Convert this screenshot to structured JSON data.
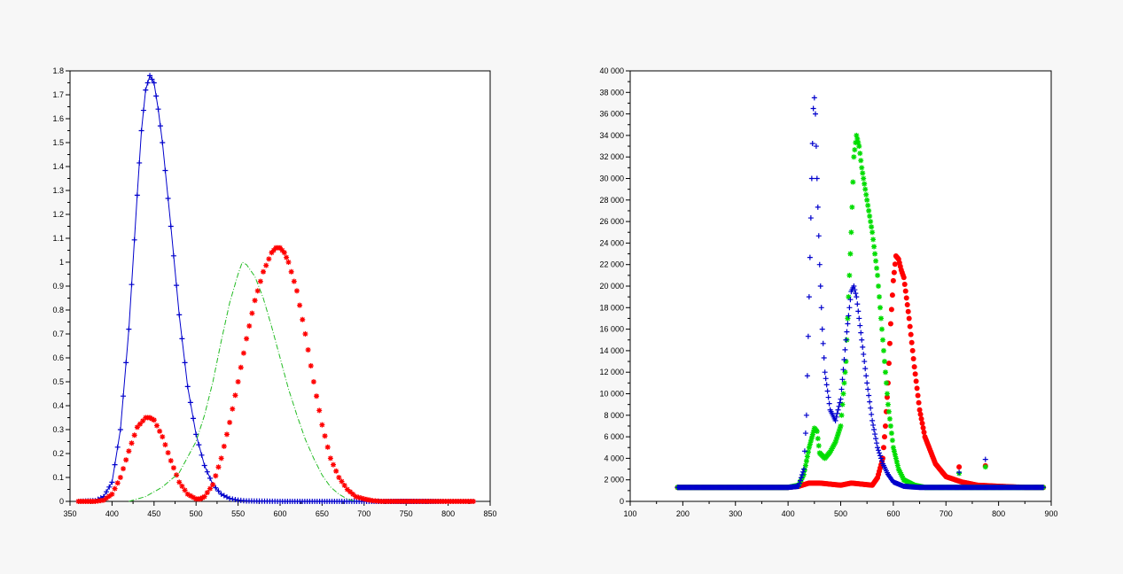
{
  "colors": {
    "background": "#f7f7f7",
    "plot_background": "#ffffff",
    "red": "#ff0000",
    "blue": "#0000cc",
    "green": "#00dd00",
    "green_dashdot": "#22bb22"
  },
  "chart_data": [
    {
      "type": "scatter",
      "title": "",
      "xlabel": "",
      "ylabel": "",
      "xlim": [
        350,
        850
      ],
      "ylim": [
        0,
        1.8
      ],
      "x_ticks": [
        350,
        400,
        450,
        500,
        550,
        600,
        650,
        700,
        750,
        800,
        850
      ],
      "y_ticks": [
        0,
        0.1,
        0.2,
        0.3,
        0.4,
        0.5,
        0.6,
        0.7,
        0.8,
        0.9,
        1,
        1.1,
        1.2,
        1.3,
        1.4,
        1.5,
        1.6,
        1.7,
        1.8
      ],
      "x_tick_labels": [
        "350",
        "400",
        "450",
        "500",
        "550",
        "600",
        "650",
        "700",
        "750",
        "800",
        "850"
      ],
      "y_tick_labels": [
        "0",
        "0.1",
        "0.2",
        "0.3",
        "0.4",
        "0.5",
        "0.6",
        "0.7",
        "0.8",
        "0.9",
        "1",
        "1.1",
        "1.2",
        "1.3",
        "1.4",
        "1.5",
        "1.6",
        "1.7",
        "1.8"
      ],
      "grid": false,
      "series": [
        {
          "color": "#0000cc",
          "marker": "plus",
          "x": [
            360,
            380,
            390,
            400,
            410,
            420,
            430,
            435,
            440,
            445,
            450,
            455,
            460,
            470,
            480,
            490,
            500,
            510,
            520,
            530,
            540,
            550,
            560,
            600,
            650,
            700,
            750,
            800,
            830
          ],
          "y": [
            0,
            0.003,
            0.02,
            0.08,
            0.3,
            0.72,
            1.28,
            1.55,
            1.72,
            1.78,
            1.75,
            1.64,
            1.5,
            1.15,
            0.78,
            0.48,
            0.28,
            0.15,
            0.07,
            0.03,
            0.012,
            0.005,
            0.002,
            0,
            0,
            0,
            0,
            0,
            0
          ]
        },
        {
          "color": "#ff0000",
          "marker": "star",
          "x": [
            360,
            380,
            390,
            400,
            410,
            420,
            430,
            440,
            445,
            450,
            460,
            470,
            480,
            490,
            500,
            505,
            510,
            520,
            530,
            540,
            550,
            560,
            570,
            580,
            590,
            595,
            600,
            605,
            610,
            620,
            630,
            640,
            650,
            660,
            670,
            680,
            690,
            700,
            710,
            720,
            740,
            760,
            800,
            830
          ],
          "y": [
            0,
            0,
            0.005,
            0.03,
            0.1,
            0.21,
            0.31,
            0.35,
            0.35,
            0.34,
            0.27,
            0.17,
            0.08,
            0.03,
            0.01,
            0.01,
            0.02,
            0.07,
            0.18,
            0.33,
            0.5,
            0.68,
            0.84,
            0.96,
            1.04,
            1.06,
            1.06,
            1.04,
            1.0,
            0.88,
            0.7,
            0.5,
            0.32,
            0.18,
            0.1,
            0.05,
            0.02,
            0.01,
            0.003,
            0,
            0,
            0,
            0,
            0
          ]
        },
        {
          "color": "#22bb22",
          "marker": "dash-dot line",
          "x": [
            420,
            440,
            460,
            480,
            500,
            510,
            520,
            530,
            540,
            550,
            555,
            560,
            570,
            580,
            590,
            600,
            610,
            620,
            630,
            640,
            650,
            660,
            670,
            680,
            690
          ],
          "y": [
            0,
            0.02,
            0.06,
            0.12,
            0.25,
            0.36,
            0.5,
            0.67,
            0.83,
            0.95,
            1.0,
            0.99,
            0.94,
            0.85,
            0.73,
            0.6,
            0.47,
            0.36,
            0.26,
            0.18,
            0.11,
            0.06,
            0.03,
            0.01,
            0
          ]
        }
      ]
    },
    {
      "type": "scatter",
      "title": "",
      "xlabel": "",
      "ylabel": "",
      "xlim": [
        100,
        900
      ],
      "ylim": [
        0,
        40000
      ],
      "x_ticks": [
        100,
        200,
        300,
        400,
        500,
        600,
        700,
        800,
        900
      ],
      "y_ticks": [
        0,
        2000,
        4000,
        6000,
        8000,
        10000,
        12000,
        14000,
        16000,
        18000,
        20000,
        22000,
        24000,
        26000,
        28000,
        30000,
        32000,
        34000,
        36000,
        38000,
        40000
      ],
      "x_tick_labels": [
        "100",
        "200",
        "300",
        "400",
        "500",
        "600",
        "700",
        "800",
        "900"
      ],
      "y_tick_labels": [
        "0",
        "2 000",
        "4 000",
        "6 000",
        "8 000",
        "10 000",
        "12 000",
        "14 000",
        "16 000",
        "18 000",
        "20 000",
        "22 000",
        "24 000",
        "26 000",
        "28 000",
        "30 000",
        "32 000",
        "34 000",
        "36 000",
        "38 000",
        "40 000"
      ],
      "grid": false,
      "series": [
        {
          "color": "#ff0000",
          "marker": "circle",
          "x": [
            190,
            250,
            300,
            350,
            400,
            420,
            440,
            460,
            480,
            500,
            520,
            540,
            560,
            570,
            580,
            585,
            590,
            595,
            600,
            605,
            610,
            615,
            620,
            630,
            640,
            650,
            660,
            680,
            700,
            730,
            760,
            800,
            850,
            885
          ],
          "y": [
            1300,
            1300,
            1300,
            1300,
            1300,
            1400,
            1700,
            1700,
            1600,
            1500,
            1700,
            1600,
            1500,
            2200,
            4000,
            7000,
            11000,
            16500,
            20500,
            22800,
            22500,
            21500,
            20800,
            17000,
            12500,
            8500,
            6000,
            3500,
            2300,
            1800,
            1500,
            1400,
            1300,
            1300
          ]
        },
        {
          "color": "#00dd00",
          "marker": "star",
          "x": [
            190,
            300,
            400,
            420,
            430,
            440,
            450,
            455,
            460,
            470,
            480,
            490,
            500,
            510,
            520,
            525,
            530,
            535,
            540,
            550,
            560,
            570,
            580,
            590,
            600,
            610,
            620,
            640,
            660,
            700,
            800,
            885
          ],
          "y": [
            1300,
            1300,
            1300,
            1500,
            2500,
            5000,
            6800,
            6500,
            4500,
            4000,
            4600,
            5500,
            7000,
            13000,
            25000,
            32000,
            34000,
            33000,
            31000,
            28000,
            25000,
            21000,
            15000,
            9000,
            5000,
            3000,
            2000,
            1500,
            1300,
            1300,
            1300,
            1300
          ]
        },
        {
          "color": "#0000cc",
          "marker": "plus",
          "x": [
            190,
            250,
            300,
            350,
            400,
            420,
            430,
            435,
            440,
            445,
            448,
            450,
            452,
            455,
            460,
            465,
            470,
            480,
            490,
            500,
            510,
            520,
            525,
            530,
            540,
            550,
            560,
            570,
            580,
            590,
            600,
            620,
            650,
            700,
            800,
            885
          ],
          "y": [
            1300,
            1300,
            1300,
            1300,
            1300,
            1400,
            3000,
            8000,
            19000,
            30000,
            36500,
            37500,
            36000,
            30000,
            22000,
            16000,
            12000,
            8500,
            7500,
            9500,
            15000,
            19500,
            20000,
            19000,
            15000,
            11000,
            7500,
            5000,
            3500,
            2500,
            1800,
            1400,
            1300,
            1300,
            1300,
            1300
          ]
        },
        {
          "color": "#ff0000",
          "marker": "circle",
          "x": [
            725,
            775
          ],
          "y": [
            3200,
            3300
          ]
        },
        {
          "color": "#00dd00",
          "marker": "star",
          "x": [
            725,
            775
          ],
          "y": [
            2600,
            3200
          ]
        },
        {
          "color": "#0000cc",
          "marker": "plus",
          "x": [
            725,
            775
          ],
          "y": [
            2700,
            3900
          ]
        }
      ]
    }
  ]
}
